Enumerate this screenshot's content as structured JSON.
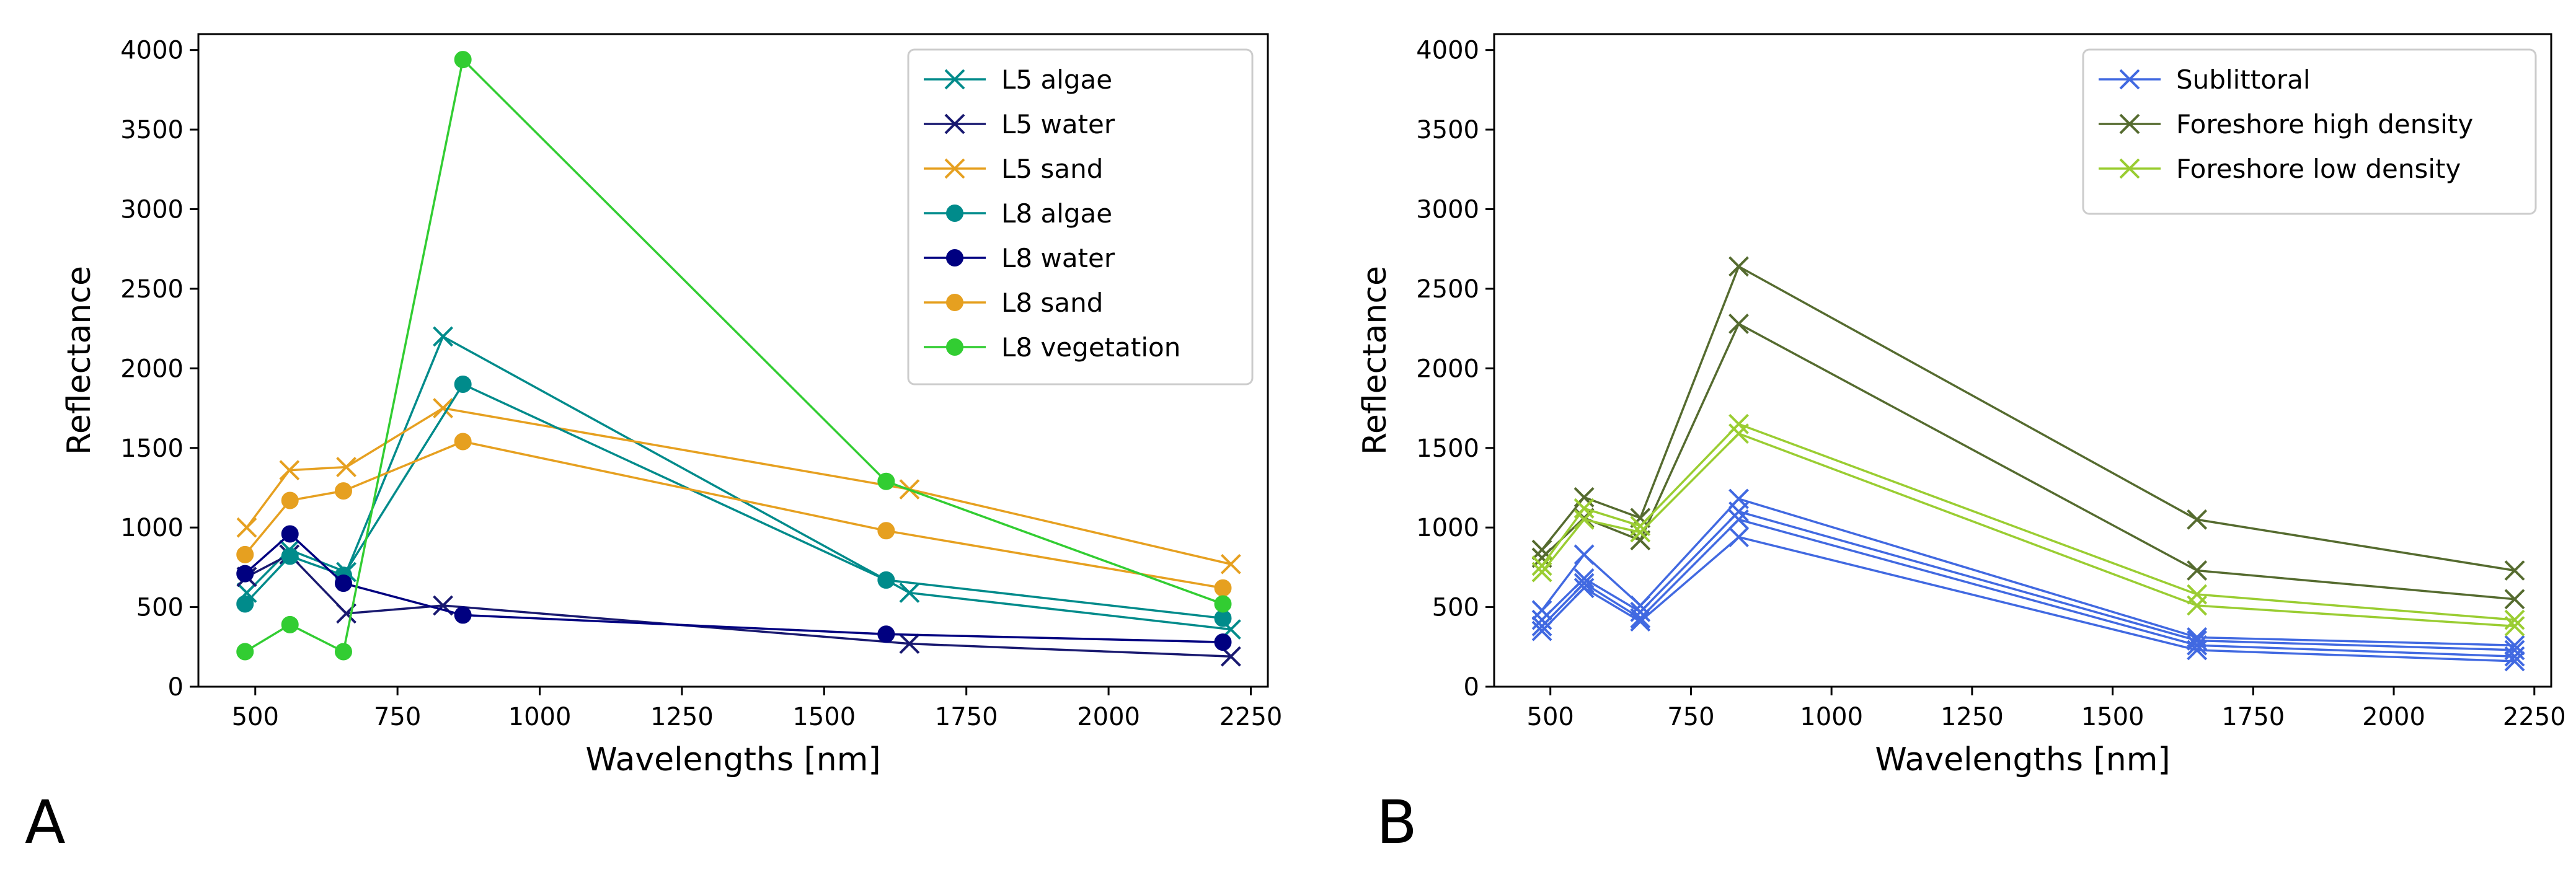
{
  "figure": {
    "panel_letters": [
      "A",
      "B"
    ]
  },
  "chart_data": [
    {
      "type": "line",
      "panel": "A",
      "xlabel": "Wavelengths [nm]",
      "ylabel": "Reflectance",
      "xlim": [
        400,
        2280
      ],
      "ylim": [
        0,
        4100
      ],
      "xticks": [
        500,
        750,
        1000,
        1250,
        1500,
        1750,
        2000,
        2250
      ],
      "yticks": [
        0,
        500,
        1000,
        1500,
        2000,
        2500,
        3000,
        3500,
        4000
      ],
      "legend_position": "top-right",
      "series": [
        {
          "name": "L5 algae",
          "color": "#008B8B",
          "marker": "x",
          "x": [
            485,
            560,
            660,
            830,
            1650,
            2215
          ],
          "y": [
            590,
            860,
            720,
            2200,
            590,
            360
          ]
        },
        {
          "name": "L5 water",
          "color": "#191970",
          "marker": "x",
          "x": [
            485,
            560,
            660,
            830,
            1650,
            2215
          ],
          "y": [
            690,
            830,
            460,
            510,
            270,
            190
          ]
        },
        {
          "name": "L5 sand",
          "color": "#E6A020",
          "marker": "x",
          "x": [
            485,
            560,
            660,
            830,
            1650,
            2215
          ],
          "y": [
            1000,
            1360,
            1380,
            1750,
            1240,
            770
          ]
        },
        {
          "name": "L8 algae",
          "color": "#008B8B",
          "marker": "o",
          "x": [
            482,
            561,
            655,
            865,
            1609,
            2201
          ],
          "y": [
            520,
            820,
            700,
            1900,
            670,
            430
          ]
        },
        {
          "name": "L8 water",
          "color": "#000080",
          "marker": "o",
          "x": [
            482,
            561,
            655,
            865,
            1609,
            2201
          ],
          "y": [
            710,
            960,
            650,
            450,
            330,
            280
          ]
        },
        {
          "name": "L8 sand",
          "color": "#E6A020",
          "marker": "o",
          "x": [
            482,
            561,
            655,
            865,
            1609,
            2201
          ],
          "y": [
            830,
            1170,
            1230,
            1540,
            980,
            620
          ]
        },
        {
          "name": "L8 vegetation",
          "color": "#32CD32",
          "marker": "o",
          "x": [
            482,
            561,
            655,
            865,
            1609,
            2201
          ],
          "y": [
            220,
            390,
            220,
            3940,
            1290,
            520
          ]
        }
      ]
    },
    {
      "type": "line",
      "panel": "B",
      "xlabel": "Wavelengths [nm]",
      "ylabel": "Reflectance",
      "xlim": [
        400,
        2280
      ],
      "ylim": [
        0,
        4100
      ],
      "xticks": [
        500,
        750,
        1000,
        1250,
        1500,
        1750,
        2000,
        2250
      ],
      "yticks": [
        0,
        500,
        1000,
        1500,
        2000,
        2500,
        3000,
        3500,
        4000
      ],
      "legend_position": "top-right",
      "legend": [
        {
          "name": "Sublittoral",
          "color": "#4169E1"
        },
        {
          "name": "Foreshore high density",
          "color": "#556B2F"
        },
        {
          "name": "Foreshore low density",
          "color": "#9ACD32"
        }
      ],
      "series": [
        {
          "name": "Sublittoral",
          "color": "#4169E1",
          "marker": "x",
          "x": [
            485,
            560,
            660,
            835,
            1650,
            2215
          ],
          "y": [
            480,
            830,
            510,
            1180,
            310,
            260
          ]
        },
        {
          "name": "Sublittoral",
          "color": "#4169E1",
          "marker": "x",
          "x": [
            485,
            560,
            660,
            835,
            1650,
            2215
          ],
          "y": [
            420,
            680,
            470,
            1100,
            290,
            230
          ]
        },
        {
          "name": "Sublittoral",
          "color": "#4169E1",
          "marker": "x",
          "x": [
            485,
            560,
            660,
            835,
            1650,
            2215
          ],
          "y": [
            380,
            650,
            430,
            1050,
            260,
            190
          ]
        },
        {
          "name": "Sublittoral",
          "color": "#4169E1",
          "marker": "x",
          "x": [
            485,
            560,
            660,
            835,
            1650,
            2215
          ],
          "y": [
            350,
            620,
            410,
            940,
            230,
            160
          ]
        },
        {
          "name": "Foreshore high density",
          "color": "#556B2F",
          "marker": "x",
          "x": [
            485,
            560,
            660,
            835,
            1650,
            2215
          ],
          "y": [
            860,
            1190,
            1060,
            2640,
            1050,
            730
          ]
        },
        {
          "name": "Foreshore high density",
          "color": "#556B2F",
          "marker": "x",
          "x": [
            485,
            560,
            660,
            835,
            1650,
            2215
          ],
          "y": [
            810,
            1060,
            920,
            2280,
            730,
            550
          ]
        },
        {
          "name": "Foreshore low density",
          "color": "#9ACD32",
          "marker": "x",
          "x": [
            485,
            560,
            660,
            835,
            1650,
            2215
          ],
          "y": [
            760,
            1120,
            1010,
            1650,
            580,
            420
          ]
        },
        {
          "name": "Foreshore low density",
          "color": "#9ACD32",
          "marker": "x",
          "x": [
            485,
            560,
            660,
            835,
            1650,
            2215
          ],
          "y": [
            720,
            1050,
            970,
            1590,
            510,
            380
          ]
        }
      ]
    }
  ]
}
